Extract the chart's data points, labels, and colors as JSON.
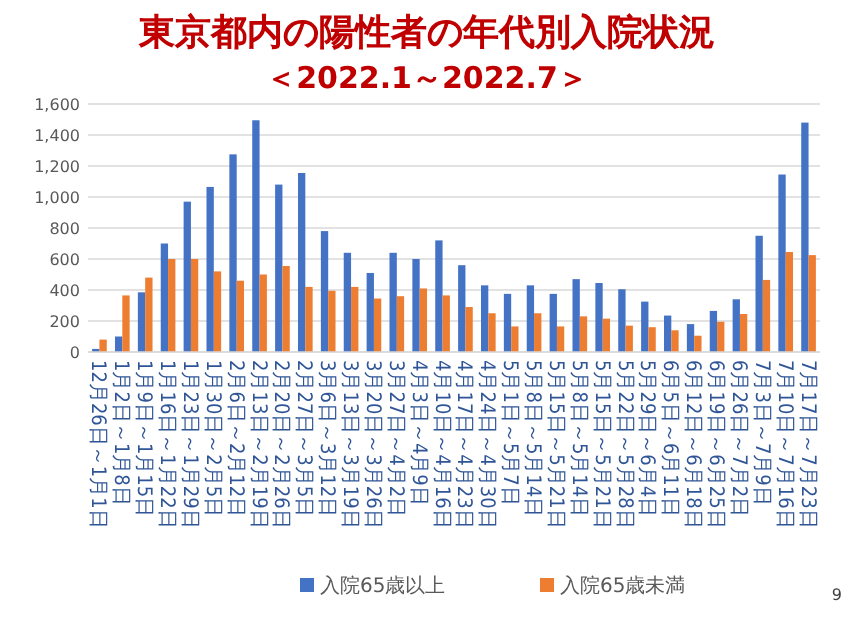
{
  "chart_data": {
    "type": "bar",
    "title": "東京都内の陽性者の年代別入院状況",
    "subtitle": "＜2022.1～2022.7＞",
    "categories": [
      "12月26日～1月1日",
      "1月2日～1月8日",
      "1月9日～1月15日",
      "1月16日～1月22日",
      "1月23日～1月29日",
      "1月30日～2月5日",
      "2月6日～2月12日",
      "2月13日～2月19日",
      "2月20日～2月26日",
      "2月27日～3月5日",
      "3月6日～3月12日",
      "3月13日～3月19日",
      "3月20日～3月26日",
      "3月27日～4月2日",
      "4月3日～4月9日",
      "4月10日～4月16日",
      "4月17日～4月23日",
      "4月24日～4月30日",
      "5月1日～5月7日",
      "5月8日～5月14日",
      "5月15日～5月21日",
      "5月8日～5月14日",
      "5月15日～5月21日",
      "5月22日～5月28日",
      "5月29日～6月4日",
      "6月5日～6月11日",
      "6月12日～6月18日",
      "6月19日～6月25日",
      "6月26日～7月2日",
      "7月3日～7月9日",
      "7月10日～7月16日",
      "7月17日～7月23日"
    ],
    "series": [
      {
        "name": "入院65歳以上",
        "color": "#4472c4",
        "values": [
          20,
          100,
          385,
          700,
          970,
          1065,
          1275,
          1495,
          1080,
          1155,
          780,
          640,
          510,
          640,
          600,
          720,
          560,
          430,
          375,
          430,
          375,
          470,
          445,
          405,
          325,
          235,
          180,
          265,
          340,
          750,
          1145,
          1480
        ]
      },
      {
        "name": "入院65歳未満",
        "color": "#ed7d31",
        "values": [
          80,
          365,
          480,
          600,
          600,
          520,
          460,
          500,
          555,
          420,
          395,
          420,
          345,
          360,
          410,
          365,
          290,
          250,
          165,
          250,
          165,
          230,
          215,
          170,
          160,
          140,
          105,
          195,
          245,
          465,
          645,
          625
        ]
      }
    ],
    "ylim": [
      0,
      1600
    ],
    "yticks": [
      0,
      200,
      400,
      600,
      800,
      {
        "value": 1000,
        "label": "1,000"
      },
      {
        "value": 1200,
        "label": "1,200"
      },
      {
        "value": 1400,
        "label": "1,400"
      },
      {
        "value": 1600,
        "label": "1,600"
      }
    ],
    "grid": "y",
    "legend": "bottom",
    "annotations": [
      "9"
    ]
  }
}
